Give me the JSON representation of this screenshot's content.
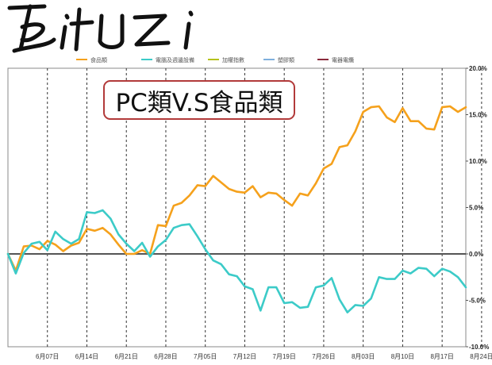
{
  "logo": {
    "text": "Bituzi"
  },
  "colors": {
    "food": "#f5a11c",
    "pc": "#3ccbc8",
    "index": "#b5c21b",
    "plastic": "#7fb0dd",
    "wire": "#8a2a3b",
    "zero_line": "#555555",
    "grid": "#333333"
  },
  "chart_data": {
    "type": "line",
    "title": "PC類V.S食品類",
    "legend": [
      "食品類",
      "電腦及週邊設備",
      "加權指數",
      "塑膠類",
      "電器電纜"
    ],
    "legend_position": "top",
    "ylim": [
      -10,
      20
    ],
    "y_ticks": [
      "20.0%",
      "15.0%",
      "10.0%",
      "5.0%",
      "0.0%",
      "-5.0%",
      "-10.0%"
    ],
    "x_ticks": [
      "6月07日",
      "6月14日",
      "6月21日",
      "6月28日",
      "7月05日",
      "7月12日",
      "7月19日",
      "7月26日",
      "8月03日",
      "8月10日",
      "8月17日",
      "8月24日"
    ],
    "x_tick_index": [
      5,
      10,
      15,
      20,
      25,
      30,
      35,
      40,
      45,
      50,
      55,
      60
    ],
    "series": [
      {
        "name": "食品類",
        "values": [
          0,
          -1.8,
          0.8,
          0.9,
          0.5,
          1.4,
          1.0,
          0.3,
          0.9,
          1.2,
          2.7,
          2.5,
          2.8,
          2.1,
          1.0,
          0.0,
          0.0,
          0.4,
          0.0,
          3.1,
          3.0,
          5.2,
          5.5,
          6.3,
          7.4,
          7.3,
          8.4,
          7.7,
          7.0,
          6.7,
          6.6,
          7.3,
          6.1,
          6.6,
          6.5,
          5.8,
          5.2,
          6.5,
          6.3,
          7.6,
          9.2,
          9.7,
          11.5,
          11.7,
          13.2,
          15.3,
          15.8,
          15.9,
          14.7,
          14.2,
          15.7,
          14.3,
          14.3,
          13.5,
          13.4,
          15.8,
          15.9,
          15.3,
          15.8
        ]
      },
      {
        "name": "電腦及週邊設備",
        "values": [
          0,
          -2.1,
          0.1,
          1.1,
          1.3,
          0.4,
          2.4,
          1.6,
          1.1,
          1.6,
          4.5,
          4.4,
          4.7,
          3.8,
          2.1,
          1.1,
          0.3,
          1.2,
          -0.3,
          0.8,
          1.5,
          2.8,
          3.1,
          3.2,
          1.9,
          0.5,
          -0.7,
          -1.1,
          -2.2,
          -2.4,
          -3.5,
          -3.8,
          -6.1,
          -3.6,
          -3.6,
          -5.3,
          -5.2,
          -5.8,
          -5.7,
          -3.6,
          -3.4,
          -2.6,
          -4.9,
          -6.3,
          -5.5,
          -5.6,
          -4.8,
          -2.5,
          -2.7,
          -2.7,
          -1.8,
          -2.1,
          -1.5,
          -1.6,
          -2.4,
          -1.6,
          -1.9,
          -2.5,
          -3.6
        ]
      }
    ]
  }
}
